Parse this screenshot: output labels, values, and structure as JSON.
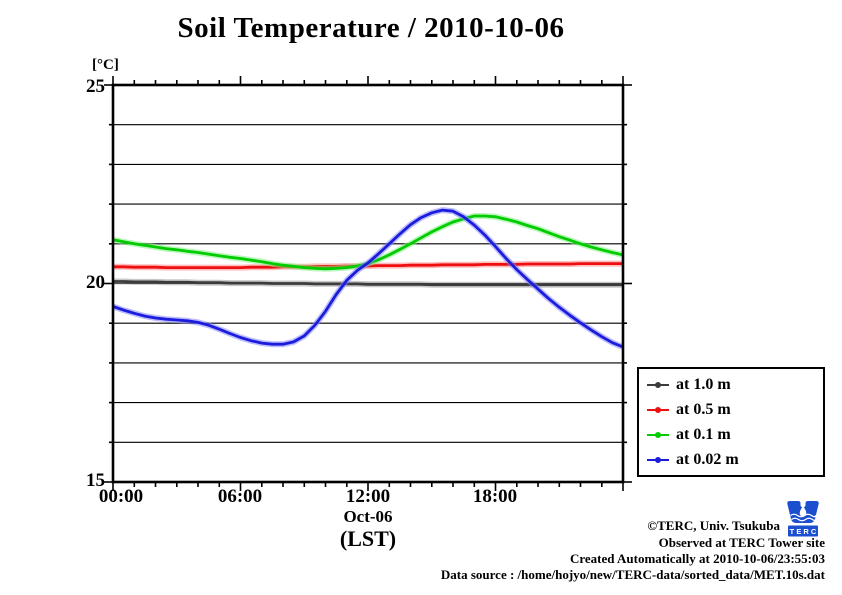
{
  "title": "Soil Temperature / 2010-10-06",
  "y_axis": {
    "unit": "[°C]",
    "tick_labels": [
      "25",
      "20",
      "15"
    ]
  },
  "x_axis": {
    "tick_labels": [
      "00:00",
      "06:00",
      "12:00",
      "18:00"
    ],
    "date_label": "Oct-06",
    "tz_label": "(LST)"
  },
  "legend": {
    "items": [
      {
        "label": "at 1.0 m",
        "color": "#3c3c3c",
        "halo": "#9a9a9a"
      },
      {
        "label": "at 0.5 m",
        "color": "#ee1010",
        "halo": "#ff8585"
      },
      {
        "label": "at 0.1 m",
        "color": "#00cc00",
        "halo": "#84ef84"
      },
      {
        "label": "at 0.02 m",
        "color": "#1c1cdd",
        "halo": "#8585ff"
      }
    ]
  },
  "footer": {
    "credit": "©TERC, Univ. Tsukuba",
    "observed": "Observed at TERC Tower site",
    "created": "Created Automatically at 2010-10-06/23:55:03",
    "source": "Data source : /home/hojyo/new/TERC-data/sorted_data/MET.10s.dat",
    "logo_text": "T E R C",
    "logo_color": "#1b4fd0"
  },
  "chart_data": {
    "type": "line",
    "title": "Soil Temperature / 2010-10-06",
    "xlabel": "Oct-06 (LST)",
    "ylabel": "[°C]",
    "xlim": [
      0,
      24
    ],
    "ylim": [
      15,
      25
    ],
    "grid": "horizontal lines every 1 degC, no vertical gridlines",
    "legend_position": "outside lower right",
    "x_tick_interval_hours": 1,
    "x_label_interval_hours": 6,
    "x_hours": [
      0,
      0.5,
      1,
      1.5,
      2,
      2.5,
      3,
      3.5,
      4,
      4.5,
      5,
      5.5,
      6,
      6.5,
      7,
      7.5,
      8,
      8.5,
      9,
      9.5,
      10,
      10.5,
      11,
      11.5,
      12,
      12.5,
      13,
      13.5,
      14,
      14.5,
      15,
      15.5,
      16,
      16.5,
      17,
      17.5,
      18,
      18.5,
      19,
      19.5,
      20,
      20.5,
      21,
      21.5,
      22,
      22.5,
      23,
      23.5,
      24
    ],
    "series": [
      {
        "name": "at 1.0 m",
        "depth_m": 1.0,
        "values": [
          20.05,
          20.05,
          20.04,
          20.04,
          20.04,
          20.03,
          20.03,
          20.03,
          20.02,
          20.02,
          20.02,
          20.01,
          20.01,
          20.01,
          20.01,
          20.0,
          20.0,
          20.0,
          20.0,
          19.99,
          19.99,
          19.99,
          19.99,
          19.99,
          19.98,
          19.98,
          19.98,
          19.98,
          19.98,
          19.98,
          19.97,
          19.97,
          19.97,
          19.97,
          19.97,
          19.97,
          19.97,
          19.97,
          19.97,
          19.97,
          19.97,
          19.97,
          19.97,
          19.97,
          19.97,
          19.97,
          19.97,
          19.97,
          19.97
        ]
      },
      {
        "name": "at 0.5 m",
        "depth_m": 0.5,
        "values": [
          20.42,
          20.42,
          20.41,
          20.41,
          20.41,
          20.4,
          20.4,
          20.4,
          20.4,
          20.4,
          20.4,
          20.4,
          20.4,
          20.41,
          20.41,
          20.41,
          20.42,
          20.42,
          20.42,
          20.43,
          20.43,
          20.43,
          20.44,
          20.44,
          20.44,
          20.45,
          20.45,
          20.45,
          20.46,
          20.46,
          20.46,
          20.47,
          20.47,
          20.47,
          20.47,
          20.48,
          20.48,
          20.48,
          20.48,
          20.49,
          20.49,
          20.49,
          20.49,
          20.49,
          20.5,
          20.5,
          20.5,
          20.5,
          20.5
        ]
      },
      {
        "name": "at 0.1 m",
        "depth_m": 0.1,
        "values": [
          21.1,
          21.05,
          21.0,
          20.96,
          20.92,
          20.88,
          20.85,
          20.81,
          20.78,
          20.74,
          20.7,
          20.66,
          20.63,
          20.59,
          20.55,
          20.5,
          20.46,
          20.43,
          20.4,
          20.38,
          20.37,
          20.38,
          20.4,
          20.44,
          20.5,
          20.6,
          20.72,
          20.86,
          21.0,
          21.15,
          21.3,
          21.43,
          21.55,
          21.63,
          21.7,
          21.7,
          21.68,
          21.62,
          21.55,
          21.46,
          21.38,
          21.28,
          21.18,
          21.09,
          21.0,
          20.92,
          20.85,
          20.78,
          20.72
        ]
      },
      {
        "name": "at 0.02 m",
        "depth_m": 0.02,
        "values": [
          19.42,
          19.33,
          19.25,
          19.18,
          19.13,
          19.1,
          19.08,
          19.06,
          19.02,
          18.95,
          18.85,
          18.74,
          18.64,
          18.56,
          18.5,
          18.47,
          18.47,
          18.53,
          18.68,
          18.95,
          19.3,
          19.72,
          20.08,
          20.33,
          20.52,
          20.75,
          21.0,
          21.25,
          21.48,
          21.66,
          21.78,
          21.85,
          21.82,
          21.68,
          21.47,
          21.22,
          20.93,
          20.63,
          20.35,
          20.1,
          19.86,
          19.62,
          19.4,
          19.2,
          19.01,
          18.83,
          18.66,
          18.51,
          18.4
        ]
      }
    ]
  }
}
